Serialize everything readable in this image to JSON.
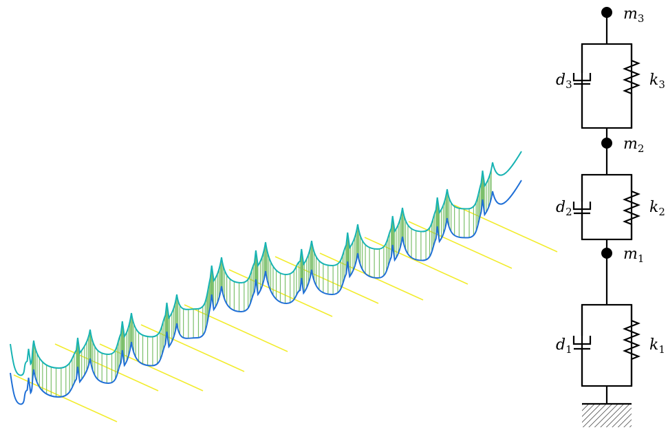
{
  "colors": {
    "upper_curve": "#17b3b3",
    "lower_curve": "#1f6fd6",
    "fill": "#5fb35f",
    "fill_lines": "#7bbf6a",
    "yellow_lines": "#f2ec2c",
    "mechanics": "#000000"
  },
  "labels": {
    "m3": {
      "base": "m",
      "sub": "3"
    },
    "m2": {
      "base": "m",
      "sub": "2"
    },
    "m1": {
      "base": "m",
      "sub": "1"
    },
    "d3": {
      "base": "d",
      "sub": "3"
    },
    "k3": {
      "base": "k",
      "sub": "3"
    },
    "d2": {
      "base": "d",
      "sub": "2"
    },
    "k2": {
      "base": "k",
      "sub": "2"
    },
    "d1": {
      "base": "d",
      "sub": "1"
    },
    "k1": {
      "base": "k",
      "sub": "1"
    }
  }
}
